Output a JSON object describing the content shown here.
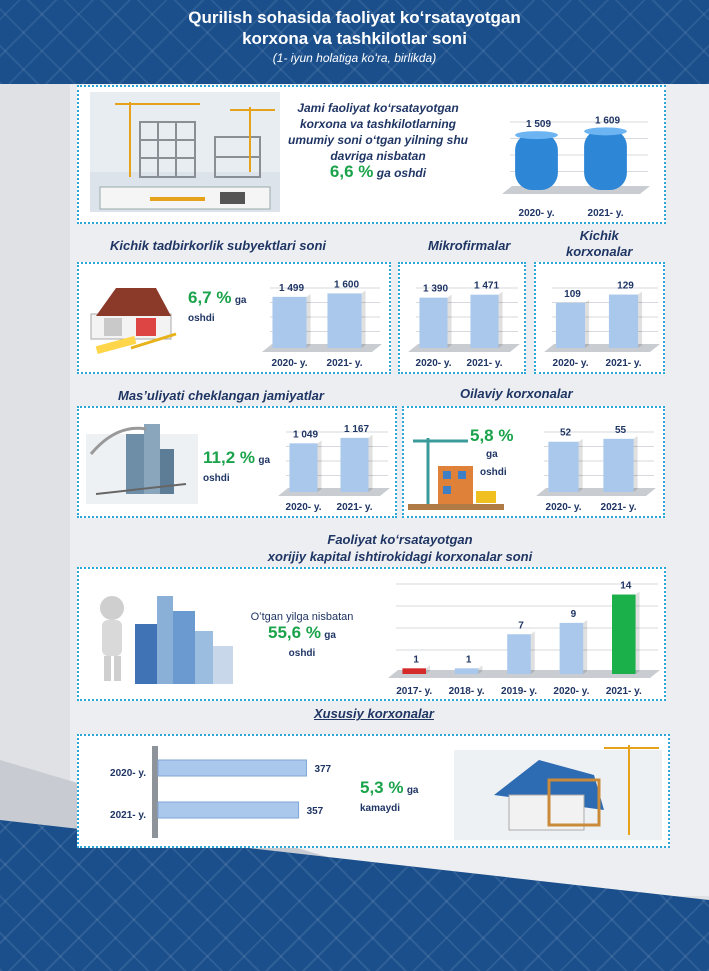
{
  "header": {
    "title_line1": "Qurilish sohasida faoliyat koʻrsatayotgan",
    "title_line2": "korxona va tashkilotlar soni",
    "subtitle": "(1- iyun holatiga koʻra, birlikda)"
  },
  "total": {
    "text": "Jami faoliyat koʻrsatayotgan korxona va tashkilotlarning umumiy soni oʻtgan yilning shu davriga nisbatan",
    "pct": "6,6 %",
    "suffix": "ga oshdi"
  },
  "small_business": {
    "title": "Kichik tadbirkorlik subyektlari soni",
    "pct": "6,7 %",
    "suffix1": "ga",
    "suffix2": "oshdi"
  },
  "micro": {
    "title": "Mikrofirmalar"
  },
  "small_firms": {
    "title1": "Kichik",
    "title2": "korxonalar"
  },
  "llc": {
    "title": "Mas’uliyati cheklangan jamiyatlar",
    "pct": "11,2 %",
    "suffix1": "ga",
    "suffix2": "oshdi"
  },
  "family": {
    "title": "Oilaviy korxonalar",
    "pct": "5,8 %",
    "suffix1": "ga",
    "suffix2": "oshdi"
  },
  "foreign": {
    "title1": "Faoliyat koʻrsatayotgan",
    "title2": "xorijiy kapital ishtirokidagi korxonalar soni",
    "text": "Oʻtgan yilga nisbatan",
    "pct": "55,6 %",
    "suffix1": "ga",
    "suffix2": "oshdi"
  },
  "private": {
    "title": "Xususiy korxonalar",
    "pct": "5,3 %",
    "suffix1": "ga",
    "suffix2": "kamaydi"
  },
  "colors": {
    "bar_blue": "#2e86d6",
    "bar_light": "#a9c8ec",
    "bar_red": "#d42a2a",
    "bar_green": "#1bb04a",
    "accent": "#2aa7d6",
    "navy": "#1a4f8c"
  },
  "chart_data": [
    {
      "id": "total",
      "type": "bar",
      "categories": [
        "2020- y.",
        "2021- y."
      ],
      "values": [
        1509,
        1609
      ],
      "labels": [
        "1 509",
        "1 609"
      ]
    },
    {
      "id": "small_business",
      "type": "bar",
      "categories": [
        "2020- y.",
        "2021- y."
      ],
      "values": [
        1499,
        1600
      ],
      "labels": [
        "1 499",
        "1 600"
      ]
    },
    {
      "id": "micro",
      "type": "bar",
      "categories": [
        "2020- y.",
        "2021- y."
      ],
      "values": [
        1390,
        1471
      ],
      "labels": [
        "1 390",
        "1 471"
      ]
    },
    {
      "id": "small_firms",
      "type": "bar",
      "categories": [
        "2020- y.",
        "2021- y."
      ],
      "values": [
        109,
        129
      ],
      "labels": [
        "109",
        "129"
      ]
    },
    {
      "id": "llc",
      "type": "bar",
      "categories": [
        "2020- y.",
        "2021- y."
      ],
      "values": [
        1049,
        1167
      ],
      "labels": [
        "1 049",
        "1 167"
      ]
    },
    {
      "id": "family",
      "type": "bar",
      "categories": [
        "2020- y.",
        "2021- y."
      ],
      "values": [
        52,
        55
      ],
      "labels": [
        "52",
        "55"
      ]
    },
    {
      "id": "foreign",
      "type": "bar",
      "categories": [
        "2017- y.",
        "2018- y.",
        "2019- y.",
        "2020- y.",
        "2021- y."
      ],
      "values": [
        1,
        1,
        7,
        9,
        14
      ],
      "labels": [
        "1",
        "1",
        "7",
        "9",
        "14"
      ]
    },
    {
      "id": "private",
      "type": "bar",
      "orientation": "horizontal",
      "categories": [
        "2020- y.",
        "2021- y."
      ],
      "values": [
        377,
        357
      ],
      "labels": [
        "377",
        "357"
      ]
    }
  ]
}
